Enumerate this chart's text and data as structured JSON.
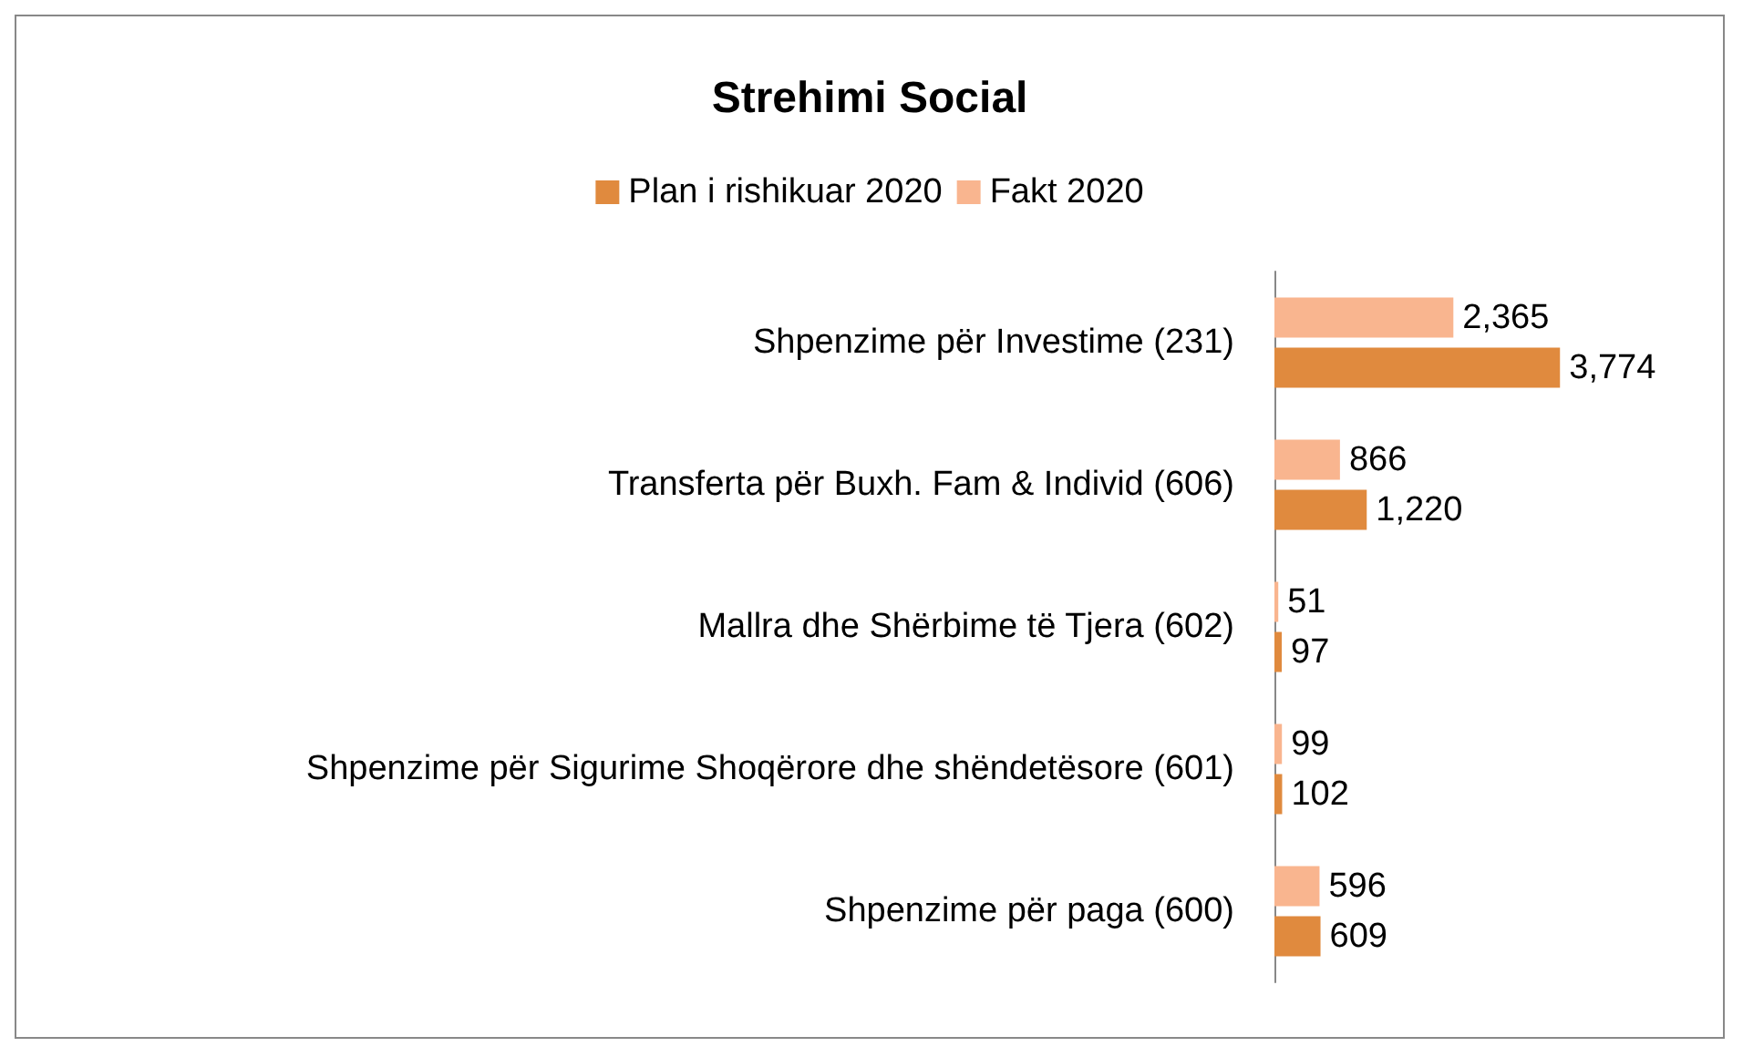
{
  "chart_data": {
    "type": "bar",
    "orientation": "horizontal",
    "title": "Strehimi Social",
    "categories": [
      "Shpenzime për Investime (231)",
      "Transferta për Buxh. Fam & Individ (606)",
      "Mallra dhe Shërbime të Tjera (602)",
      "Shpenzime për Sigurime Shoqërore dhe shëndetësore (601)",
      "Shpenzime për paga (600)"
    ],
    "series": [
      {
        "name": "Plan i rishikuar 2020",
        "color": "#e08a3e",
        "values": [
          3774,
          1220,
          97,
          102,
          609
        ],
        "value_labels": [
          "3,774",
          "1,220",
          "97",
          "102",
          "609"
        ]
      },
      {
        "name": "Fakt 2020",
        "color": "#f9b58f",
        "values": [
          2365,
          866,
          51,
          99,
          596
        ],
        "value_labels": [
          "2,365",
          "866",
          "51",
          "99",
          "596"
        ]
      }
    ],
    "legend": "top",
    "tick_labels": "y"
  }
}
